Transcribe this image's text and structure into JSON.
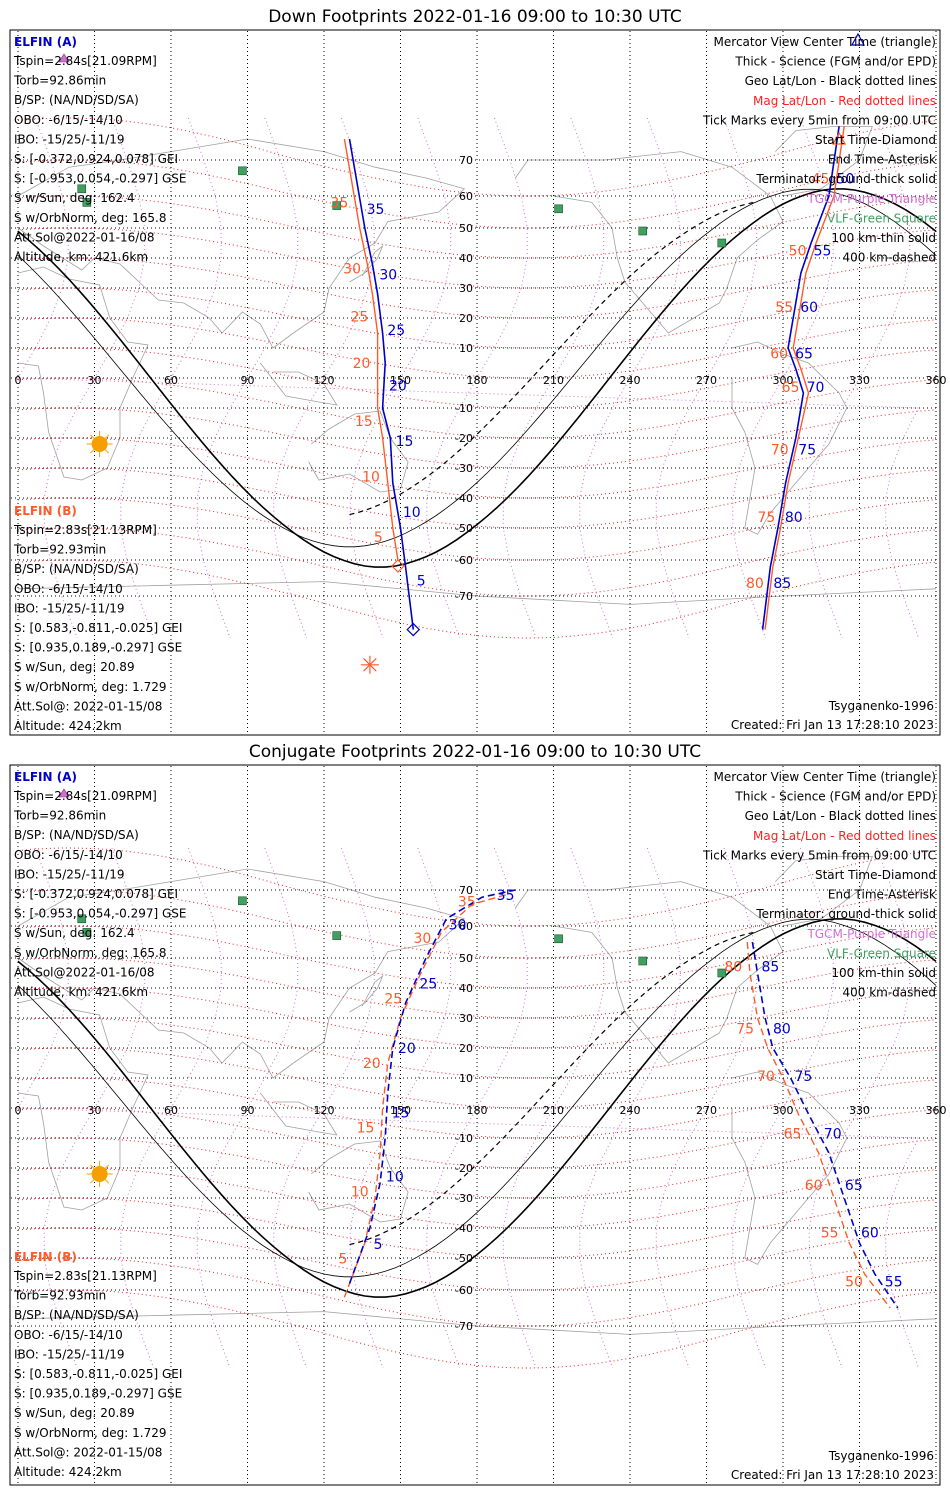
{
  "panels": [
    {
      "title": "Down Footprints 2022-01-16 09:00 to 10:30 UTC",
      "elfin_a": {
        "header": "ELFIN (A)",
        "lines": [
          "Tspin=2.84s[21.09RPM]",
          "Torb=92.86min",
          "B/SP: (NA/ND/SD/SA)",
          "OBO: -6/15/-14/10",
          "IBO: -15/25/-11/19",
          "S: [-0.372,0.924,0.078] GEI",
          "S: [-0.953,0.054,-0.297] GSE",
          "S w/Sun, deg: 162.4",
          "S w/OrbNorm, deg: 165.8",
          "Att.Sol@2022-01-16/08",
          "Altitude, km: 421.6km"
        ]
      },
      "elfin_b": {
        "header": "ELFIN (B)",
        "lines": [
          "Tspin=2.83s[21.13RPM]",
          "Torb=92.93min",
          "B/SP: (NA/ND/SD/SA)",
          "OBO: -6/15/-14/10",
          "IBO: -15/25/-11/19",
          "S: [0.583,-0.811,-0.025] GEI",
          "S: [0.935,0.189,-0.297] GSE",
          "S w/Sun, deg: 20.89",
          "S w/OrbNorm, deg: 1.729",
          "Att.Sol@: 2022-01-15/08",
          "Altitude: 424.2km"
        ]
      },
      "legend": [
        {
          "text": "Mercator View Center Time (triangle)",
          "color": "#000000"
        },
        {
          "text": "Thick - Science (FGM and/or EPD)",
          "color": "#000000"
        },
        {
          "text": "Geo Lat/Lon - Black dotted lines",
          "color": "#000000"
        },
        {
          "text": "Mag Lat/Lon - Red dotted lines",
          "color": "#ff2020"
        },
        {
          "text": "Tick Marks every 5min from 09:00 UTC",
          "color": "#000000"
        },
        {
          "text": "Start Time-Diamond",
          "color": "#000000"
        },
        {
          "text": "End Time-Asterisk",
          "color": "#000000"
        },
        {
          "text": "Terminator: ground-thick solid",
          "color": "#000000"
        },
        {
          "text": "TGCM-Purple Triangle",
          "color": "#d070d0"
        },
        {
          "text": "VLF-Green Square",
          "color": "#40a060"
        },
        {
          "text": "100 km-thin solid",
          "color": "#000000"
        },
        {
          "text": "400 km-dashed",
          "color": "#000000"
        }
      ],
      "model": "Tsyganenko-1996",
      "created": "Created: Fri Jan 13 17:28:10 2023",
      "lon_labels": [
        "0",
        "30",
        "60",
        "90",
        "120",
        "150",
        "180",
        "210",
        "240",
        "270",
        "300",
        "330",
        "360"
      ],
      "lat_labels": [
        "70",
        "60",
        "50",
        "40",
        "30",
        "20",
        "10",
        "-10",
        "-20",
        "-30",
        "-40",
        "-50",
        "-60",
        "-70"
      ],
      "track_a_ticks": [
        "35",
        "30",
        "25",
        "20",
        "15",
        "10",
        "5",
        "50",
        "55",
        "60",
        "65",
        "70",
        "75",
        "80",
        "85"
      ],
      "track_b_ticks": [
        "35",
        "30",
        "25",
        "20",
        "15",
        "10",
        "5",
        "45",
        "50",
        "55",
        "60",
        "65",
        "70",
        "75",
        "80"
      ]
    },
    {
      "title": "Conjugate Footprints 2022-01-16 09:00 to 10:30 UTC",
      "elfin_a": {
        "header": "ELFIN (A)",
        "lines": [
          "Tspin=2.84s[21.09RPM]",
          "Torb=92.86min",
          "B/SP: (NA/ND/SD/SA)",
          "OBO: -6/15/-14/10",
          "IBO: -15/25/-11/19",
          "S: [-0.372,0.924,0.078] GEI",
          "S: [-0.953,0.054,-0.297] GSE",
          "S w/Sun, deg: 162.4",
          "S w/OrbNorm, deg: 165.8",
          "Att.Sol@2022-01-16/08",
          "Altitude, km: 421.6km"
        ]
      },
      "elfin_b": {
        "header": "ELFIN (B)",
        "lines": [
          "Tspin=2.83s[21.13RPM]",
          "Torb=92.93min",
          "B/SP: (NA/ND/SD/SA)",
          "OBO: -6/15/-14/10",
          "IBO: -15/25/-11/19",
          "S: [0.583,-0.811,-0.025] GEI",
          "S: [0.935,0.189,-0.297] GSE",
          "S w/Sun, deg: 20.89",
          "S w/OrbNorm, deg: 1.729",
          "Att.Sol@: 2022-01-15/08",
          "Altitude: 424.2km"
        ]
      },
      "legend": [
        {
          "text": "Mercator View Center Time (triangle)",
          "color": "#000000"
        },
        {
          "text": "Thick - Science (FGM and/or EPD)",
          "color": "#000000"
        },
        {
          "text": "Geo Lat/Lon - Black dotted lines",
          "color": "#000000"
        },
        {
          "text": "Mag Lat/Lon - Red dotted lines",
          "color": "#ff2020"
        },
        {
          "text": "Tick Marks every 5min from 09:00 UTC",
          "color": "#000000"
        },
        {
          "text": "Start Time-Diamond",
          "color": "#000000"
        },
        {
          "text": "End Time-Asterisk",
          "color": "#000000"
        },
        {
          "text": "Terminator: ground-thick solid",
          "color": "#000000"
        },
        {
          "text": "TGCM-Purple Triangle",
          "color": "#d070d0"
        },
        {
          "text": "VLF-Green Square",
          "color": "#40a060"
        },
        {
          "text": "100 km-thin solid",
          "color": "#000000"
        },
        {
          "text": "400 km-dashed",
          "color": "#000000"
        }
      ],
      "model": "Tsyganenko-1996",
      "created": "Created: Fri Jan 13 17:28:10 2023",
      "lon_labels": [
        "0",
        "30",
        "60",
        "90",
        "120",
        "150",
        "180",
        "210",
        "240",
        "270",
        "300",
        "330",
        "360"
      ],
      "lat_labels": [
        "70",
        "60",
        "50",
        "40",
        "30",
        "20",
        "10",
        "-10",
        "-20",
        "-30",
        "-40",
        "-50",
        "-60",
        "-70"
      ],
      "track_a_ticks": [
        "5",
        "10",
        "15",
        "20",
        "25",
        "30",
        "35",
        "85",
        "80",
        "75",
        "70",
        "65",
        "60",
        "55"
      ],
      "track_b_ticks": [
        "5",
        "10",
        "15",
        "20",
        "25",
        "30",
        "35",
        "80",
        "75",
        "70",
        "65",
        "60",
        "55",
        "50"
      ]
    }
  ],
  "colors": {
    "elfin_a": "#0000cc",
    "elfin_b": "#ff5a2a",
    "mag_grid": "#ee2222",
    "geo_grid": "#000000",
    "tgcm": "#d070d0",
    "vlf": "#40a060",
    "sun": "#f5a000",
    "coast": "#a0a0a0"
  }
}
